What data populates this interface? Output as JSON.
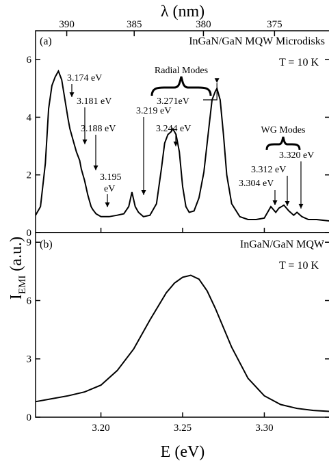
{
  "figure": {
    "top_axis_title": "λ (nm)",
    "x_axis_title": "E (eV)",
    "y_axis_title_main": "I",
    "y_axis_title_sub": "EMI",
    "y_axis_title_unit": " (a.u.)"
  },
  "chart_data": [
    {
      "panel": "a",
      "type": "line",
      "panel_label": "(a)",
      "title": "InGaN/GaN MQW Microdisks",
      "temperature_label": "T = 10 K",
      "x_unit": "eV",
      "xlim": [
        3.16,
        3.34
      ],
      "ylim": [
        0,
        7
      ],
      "x_ticks": [
        3.2,
        3.25,
        3.3
      ],
      "y_ticks": [
        0,
        2,
        4,
        6
      ],
      "top_axis": {
        "label": "λ (nm)",
        "ticks": [
          390,
          385,
          380,
          375
        ],
        "tick_labels": [
          "390",
          "385",
          "380",
          "375"
        ]
      },
      "series": [
        {
          "x": [
            3.16,
            3.163,
            3.166,
            3.168,
            3.17,
            3.172,
            3.174,
            3.176,
            3.178,
            3.18,
            3.181,
            3.183,
            3.185,
            3.187,
            3.188,
            3.19,
            3.192,
            3.194,
            3.195,
            3.197,
            3.2,
            3.205,
            3.21,
            3.214,
            3.217,
            3.219,
            3.221,
            3.223,
            3.226,
            3.23,
            3.234,
            3.237,
            3.239,
            3.241,
            3.243,
            3.244,
            3.246,
            3.248,
            3.25,
            3.252,
            3.254,
            3.257,
            3.26,
            3.263,
            3.266,
            3.268,
            3.27,
            3.271,
            3.273,
            3.275,
            3.277,
            3.28,
            3.285,
            3.29,
            3.295,
            3.3,
            3.304,
            3.307,
            3.309,
            3.312,
            3.315,
            3.318,
            3.32,
            3.323,
            3.327,
            3.332,
            3.34
          ],
          "y": [
            0.6,
            0.9,
            2.4,
            4.3,
            5.1,
            5.4,
            5.6,
            5.3,
            4.6,
            3.9,
            3.6,
            3.2,
            2.8,
            2.5,
            2.2,
            1.8,
            1.3,
            0.9,
            0.8,
            0.65,
            0.55,
            0.55,
            0.6,
            0.65,
            0.9,
            1.4,
            0.9,
            0.7,
            0.55,
            0.6,
            1.0,
            2.2,
            3.1,
            3.4,
            3.5,
            3.6,
            3.4,
            2.8,
            1.6,
            0.9,
            0.7,
            0.75,
            1.2,
            2.1,
            3.6,
            4.6,
            4.9,
            5.0,
            4.6,
            3.4,
            2.0,
            1.0,
            0.55,
            0.45,
            0.45,
            0.5,
            0.9,
            0.7,
            0.85,
            0.95,
            0.75,
            0.6,
            0.7,
            0.55,
            0.45,
            0.45,
            0.4
          ]
        }
      ],
      "annotations": [
        {
          "text": "3.174 eV",
          "x": 3.174,
          "y": 5.6
        },
        {
          "text": "3.181 eV",
          "x": 3.181,
          "y": 3.6
        },
        {
          "text": "3.188 eV",
          "x": 3.188,
          "y": 2.2
        },
        {
          "text": "3.195",
          "text2": "eV",
          "x": 3.195,
          "y": 0.8
        },
        {
          "text": "3.219 eV",
          "x": 3.219,
          "y": 1.4
        },
        {
          "text": "3.244 eV",
          "x": 3.244,
          "y": 3.6
        },
        {
          "text": "3.271eV",
          "x": 3.271,
          "y": 5.0
        },
        {
          "text": "3.304 eV",
          "x": 3.304,
          "y": 0.9
        },
        {
          "text": "3.312 eV",
          "x": 3.312,
          "y": 0.95
        },
        {
          "text": "3.320 eV",
          "x": 3.32,
          "y": 0.7
        }
      ],
      "brace_labels": {
        "radial": "Radial Modes",
        "wg": "WG Modes"
      }
    },
    {
      "panel": "b",
      "type": "line",
      "panel_label": "(b)",
      "title": "InGaN/GaN MQW",
      "temperature_label": "T = 10 K",
      "x_unit": "eV",
      "xlim": [
        3.16,
        3.34
      ],
      "ylim": [
        0,
        9.5
      ],
      "x_ticks": [
        3.2,
        3.25,
        3.3
      ],
      "x_tick_labels": [
        "3.20",
        "3.25",
        "3.30"
      ],
      "y_ticks": [
        0,
        3,
        6,
        9
      ],
      "series": [
        {
          "x": [
            3.16,
            3.17,
            3.18,
            3.19,
            3.2,
            3.21,
            3.22,
            3.23,
            3.24,
            3.245,
            3.25,
            3.255,
            3.26,
            3.265,
            3.27,
            3.28,
            3.29,
            3.3,
            3.31,
            3.32,
            3.33,
            3.34
          ],
          "y": [
            0.8,
            0.95,
            1.1,
            1.3,
            1.65,
            2.4,
            3.5,
            5.0,
            6.4,
            6.9,
            7.2,
            7.3,
            7.1,
            6.5,
            5.6,
            3.6,
            2.0,
            1.1,
            0.65,
            0.45,
            0.35,
            0.3
          ]
        }
      ]
    }
  ]
}
